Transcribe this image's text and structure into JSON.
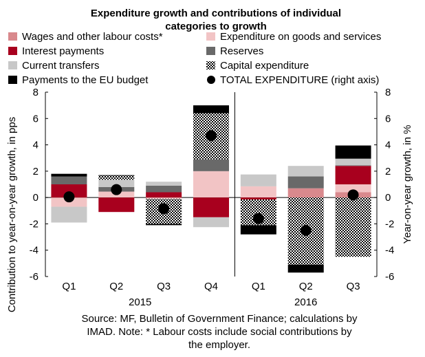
{
  "chart_data": {
    "type": "bar",
    "stacked": true,
    "title_line1": "Expenditure growth and contributions of individual",
    "title_line2": "categories to growth",
    "categories": [
      "Q1",
      "Q2",
      "Q3",
      "Q4",
      "Q1",
      "Q2",
      "Q3"
    ],
    "year_groups": [
      {
        "label": "2015",
        "from": 0,
        "to": 3
      },
      {
        "label": "2016",
        "from": 4,
        "to": 6
      }
    ],
    "ylabel_left": "Contribution to year-on-year growth, in pps",
    "ylabel_right": "Year-on-year growth, in %",
    "ylim": [
      -6,
      8
    ],
    "yticks": [
      "-6",
      "-4",
      "-2",
      "0",
      "2",
      "4",
      "6",
      "8"
    ],
    "grid": false,
    "legend_position": "top",
    "series": [
      {
        "name": "Wages and other labour costs*",
        "color": "#d9898d",
        "pattern": "solid",
        "values": [
          0,
          0,
          0,
          0,
          0,
          0.7,
          0.4
        ]
      },
      {
        "name": "Expenditure on goods and services",
        "color": "#f2c4c5",
        "pattern": "solid",
        "values": [
          -0.7,
          0.45,
          -0.1,
          2.0,
          0.85,
          0,
          0.6
        ]
      },
      {
        "name": "Interest payments",
        "color": "#a8001e",
        "pattern": "solid",
        "values": [
          1.0,
          -1.1,
          0.4,
          -1.5,
          -0.15,
          0,
          1.4
        ]
      },
      {
        "name": "Reserves",
        "color": "#696969",
        "pattern": "solid",
        "values": [
          0.6,
          0.35,
          0.5,
          0.9,
          0,
          0.9,
          0.05
        ]
      },
      {
        "name": "Current transfers",
        "color": "#c8c8c8",
        "pattern": "solid",
        "values": [
          -1.2,
          0.55,
          0.3,
          -0.75,
          0.9,
          0.8,
          0.5
        ]
      },
      {
        "name": "Capital expenditure",
        "color": "#8f8f8f",
        "pattern": "checker",
        "values": [
          0,
          0.3,
          -1.9,
          3.5,
          -1.95,
          -5.1,
          -4.5
        ]
      },
      {
        "name": "Payments to the EU budget",
        "color": "#000000",
        "pattern": "solid",
        "values": [
          0.2,
          0.05,
          -0.1,
          0.6,
          -0.7,
          -0.6,
          1.0
        ]
      }
    ],
    "total": {
      "name": "TOTAL EXPENDITURE (right axis)",
      "color": "#000000",
      "values": [
        0.05,
        0.6,
        -0.85,
        4.7,
        -1.6,
        -2.5,
        0.2
      ]
    },
    "source_line1": "Source: MF, Bulletin of Government Finance; calculations by",
    "source_line2": "IMAD.  Note: * Labour costs include social contributions by",
    "source_line3": "the employer."
  }
}
